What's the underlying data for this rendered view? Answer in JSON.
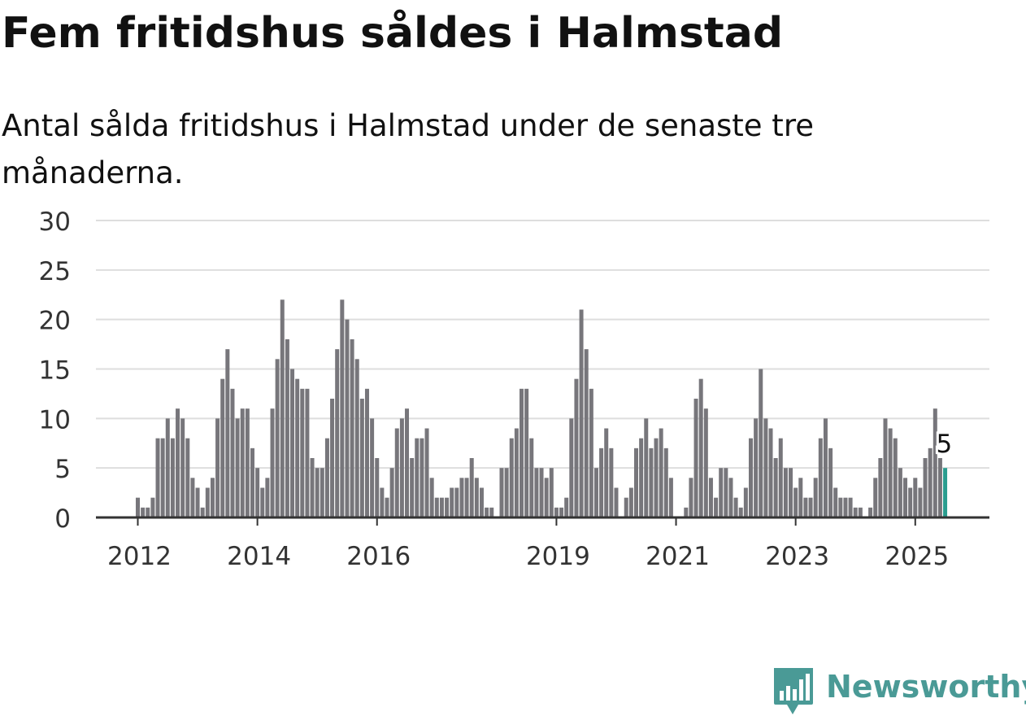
{
  "title": "Fem fritidshus såldes i Halmstad",
  "subtitle": "Antal sålda fritidshus i Halmstad under de senaste tre månaderna.",
  "brand": {
    "name": "Newsworthy",
    "color": "#4a9a96"
  },
  "colors": {
    "bar": "#77767b",
    "highlight": "#2a9d8f",
    "grid": "#dedede",
    "axis": "#333333"
  },
  "chart_data": {
    "type": "bar",
    "title": "Fem fritidshus såldes i Halmstad",
    "subtitle": "Antal sålda fritidshus i Halmstad under de senaste tre månaderna.",
    "xlabel": "",
    "ylabel": "",
    "ylim": [
      0,
      30
    ],
    "yticks": [
      0,
      5,
      10,
      15,
      20,
      25,
      30
    ],
    "xtick_labels": [
      "2012",
      "2014",
      "2016",
      "2019",
      "2021",
      "2023",
      "2025"
    ],
    "grid": true,
    "highlight_label": "5",
    "series": [
      {
        "year": 2012,
        "values": [
          2,
          1,
          1,
          2,
          8,
          8,
          10,
          8,
          11,
          10,
          8,
          4
        ]
      },
      {
        "year": 2013,
        "values": [
          3,
          1,
          3,
          4,
          10,
          14,
          17,
          13,
          10,
          11,
          11,
          7
        ]
      },
      {
        "year": 2014,
        "values": [
          5,
          3,
          4,
          11,
          16,
          22,
          18,
          15,
          14,
          13,
          13,
          6
        ]
      },
      {
        "year": 2015,
        "values": [
          5,
          5,
          8,
          12,
          17,
          22,
          20,
          18,
          16,
          12,
          13,
          10
        ]
      },
      {
        "year": 2016,
        "values": [
          6,
          3,
          2,
          5,
          9,
          10,
          11,
          6,
          8,
          8,
          9,
          4
        ]
      },
      {
        "year": 2017,
        "values": [
          2,
          2,
          2,
          3,
          3,
          4,
          4,
          6,
          4,
          3,
          1,
          1
        ]
      },
      {
        "year": 2018,
        "values": [
          0,
          5,
          5,
          8,
          9,
          13,
          13,
          8,
          5,
          5,
          4,
          5
        ]
      },
      {
        "year": 2019,
        "values": [
          1,
          1,
          2,
          10,
          14,
          21,
          17,
          13,
          5,
          7,
          9,
          7
        ]
      },
      {
        "year": 2020,
        "values": [
          3,
          0,
          2,
          3,
          7,
          8,
          10,
          7,
          8,
          9,
          7,
          4
        ]
      },
      {
        "year": 2021,
        "values": [
          0,
          0,
          1,
          4,
          12,
          14,
          11,
          4,
          2,
          5,
          5,
          4
        ]
      },
      {
        "year": 2022,
        "values": [
          2,
          1,
          3,
          8,
          10,
          15,
          10,
          9,
          6,
          8,
          5,
          5
        ]
      },
      {
        "year": 2023,
        "values": [
          3,
          4,
          2,
          2,
          4,
          8,
          10,
          7,
          3,
          2,
          2,
          2
        ]
      },
      {
        "year": 2024,
        "values": [
          1,
          1,
          0,
          1,
          4,
          6,
          10,
          9,
          8,
          5,
          4,
          3
        ]
      },
      {
        "year": 2025,
        "values": [
          4,
          3,
          6,
          7,
          11,
          6,
          5
        ]
      }
    ]
  }
}
